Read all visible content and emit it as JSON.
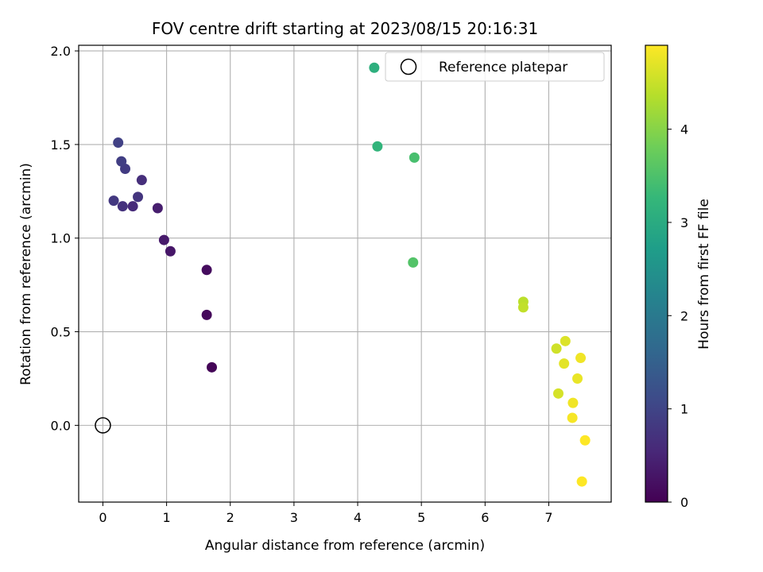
{
  "chart_data": {
    "type": "scatter",
    "title": "FOV centre drift starting at 2023/08/15 20:16:31",
    "xlabel": "Angular distance from reference (arcmin)",
    "ylabel": "Rotation from reference (arcmin)",
    "xlim": [
      -0.38,
      7.98
    ],
    "ylim": [
      -0.41,
      2.03
    ],
    "xticks": [
      0,
      1,
      2,
      3,
      4,
      5,
      6,
      7
    ],
    "yticks": [
      0.0,
      0.5,
      1.0,
      1.5,
      2.0
    ],
    "xtick_labels": [
      "0",
      "1",
      "2",
      "3",
      "4",
      "5",
      "6",
      "7"
    ],
    "ytick_labels": [
      "0.0",
      "0.5",
      "1.0",
      "1.5",
      "2.0"
    ],
    "grid": true,
    "legend": {
      "placement": "top-right",
      "entries": [
        "Reference platepar"
      ]
    },
    "reference_point": {
      "name": "Reference platepar",
      "x": 0.0,
      "y": 0.0
    },
    "colorbar": {
      "label": "Hours from first FF file",
      "range": [
        0,
        4.9
      ],
      "ticks": [
        0,
        1,
        2,
        3,
        4
      ],
      "tick_labels": [
        "0",
        "1",
        "2",
        "3",
        "4"
      ],
      "colormap": "viridis"
    },
    "points": [
      {
        "x": 1.71,
        "y": 0.31,
        "hours": 0.05
      },
      {
        "x": 1.63,
        "y": 0.59,
        "hours": 0.1
      },
      {
        "x": 1.63,
        "y": 0.83,
        "hours": 0.15
      },
      {
        "x": 1.06,
        "y": 0.93,
        "hours": 0.3
      },
      {
        "x": 0.96,
        "y": 0.99,
        "hours": 0.35
      },
      {
        "x": 0.86,
        "y": 1.16,
        "hours": 0.4
      },
      {
        "x": 0.47,
        "y": 1.17,
        "hours": 0.6
      },
      {
        "x": 0.31,
        "y": 1.17,
        "hours": 0.7
      },
      {
        "x": 0.17,
        "y": 1.2,
        "hours": 0.8
      },
      {
        "x": 0.55,
        "y": 1.22,
        "hours": 0.75
      },
      {
        "x": 0.61,
        "y": 1.31,
        "hours": 0.65
      },
      {
        "x": 0.35,
        "y": 1.37,
        "hours": 0.85
      },
      {
        "x": 0.29,
        "y": 1.41,
        "hours": 0.9
      },
      {
        "x": 0.24,
        "y": 1.51,
        "hours": 0.95
      },
      {
        "x": 4.26,
        "y": 1.91,
        "hours": 3.1
      },
      {
        "x": 4.31,
        "y": 1.49,
        "hours": 3.2
      },
      {
        "x": 4.89,
        "y": 1.43,
        "hours": 3.45
      },
      {
        "x": 4.87,
        "y": 0.87,
        "hours": 3.55
      },
      {
        "x": 6.6,
        "y": 0.66,
        "hours": 4.4
      },
      {
        "x": 6.6,
        "y": 0.63,
        "hours": 4.45
      },
      {
        "x": 7.26,
        "y": 0.45,
        "hours": 4.65
      },
      {
        "x": 7.12,
        "y": 0.41,
        "hours": 4.55
      },
      {
        "x": 7.5,
        "y": 0.36,
        "hours": 4.8
      },
      {
        "x": 7.24,
        "y": 0.33,
        "hours": 4.7
      },
      {
        "x": 7.45,
        "y": 0.25,
        "hours": 4.75
      },
      {
        "x": 7.15,
        "y": 0.17,
        "hours": 4.6
      },
      {
        "x": 7.38,
        "y": 0.12,
        "hours": 4.8
      },
      {
        "x": 7.37,
        "y": 0.04,
        "hours": 4.85
      },
      {
        "x": 7.57,
        "y": -0.08,
        "hours": 4.9
      },
      {
        "x": 7.52,
        "y": -0.3,
        "hours": 4.9
      }
    ]
  }
}
